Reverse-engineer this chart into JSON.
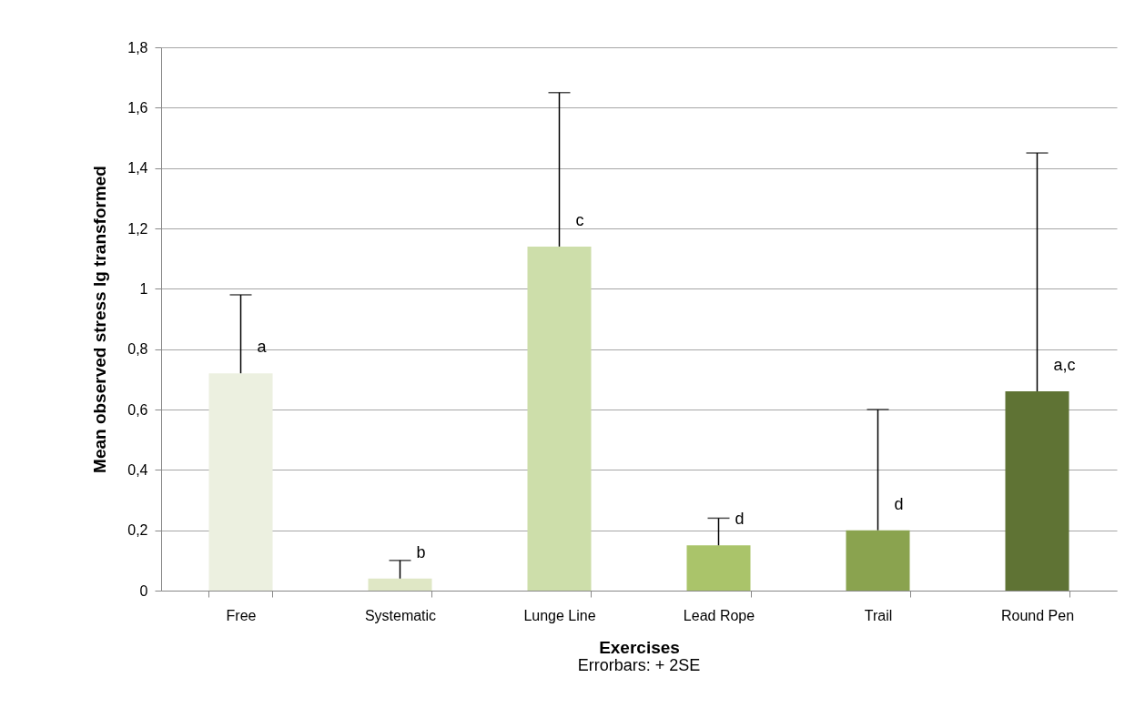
{
  "chart_data": {
    "type": "bar",
    "xlabel": "Exercises",
    "ylabel": "Mean observed stress lg transformed",
    "categories": [
      "Free",
      "Systematic",
      "Lunge Line",
      "Lead Rope",
      "Trail",
      "Round Pen"
    ],
    "values": [
      0.72,
      0.04,
      1.14,
      0.15,
      0.2,
      0.66
    ],
    "colors": [
      "#ecf0e0",
      "#dfe7c5",
      "#cddeaa",
      "#aac46a",
      "#8aa34f",
      "#5f7334"
    ],
    "errors": [
      [
        0.72,
        0.98
      ],
      [
        0.04,
        0.1
      ],
      [
        1.14,
        1.65
      ],
      [
        0.15,
        0.24
      ],
      [
        0.2,
        0.6
      ],
      [
        0.66,
        1.45
      ]
    ],
    "ylim": [
      0,
      1.8
    ],
    "yticks": [
      0,
      {
        "value": 0.2,
        "label": "0,2"
      },
      {
        "value": 0.4,
        "label": "0,4"
      },
      {
        "value": 0.6,
        "label": "0,6"
      },
      {
        "value": 0.8,
        "label": "0,8"
      },
      1,
      {
        "value": 1.2,
        "label": "1,2"
      },
      {
        "value": 1.4,
        "label": "1,4"
      },
      {
        "value": 1.6,
        "label": "1,6"
      },
      {
        "value": 1.8,
        "label": "1,8"
      }
    ],
    "grid": "y",
    "annotations": [
      {
        "text": "a",
        "x": "Free",
        "y": 0.72
      },
      {
        "text": "b",
        "x": "Systematic",
        "y": 0.04
      },
      {
        "text": "c",
        "x": "Lunge Line",
        "y": 1.14
      },
      {
        "text": "d",
        "x": "Lead Rope",
        "y": 0.15
      },
      {
        "text": "d",
        "x": "Trail",
        "y": 0.2
      },
      {
        "text": "a,c",
        "x": "Round Pen",
        "y": 0.66
      },
      "Errorbars: + 2SE"
    ]
  }
}
